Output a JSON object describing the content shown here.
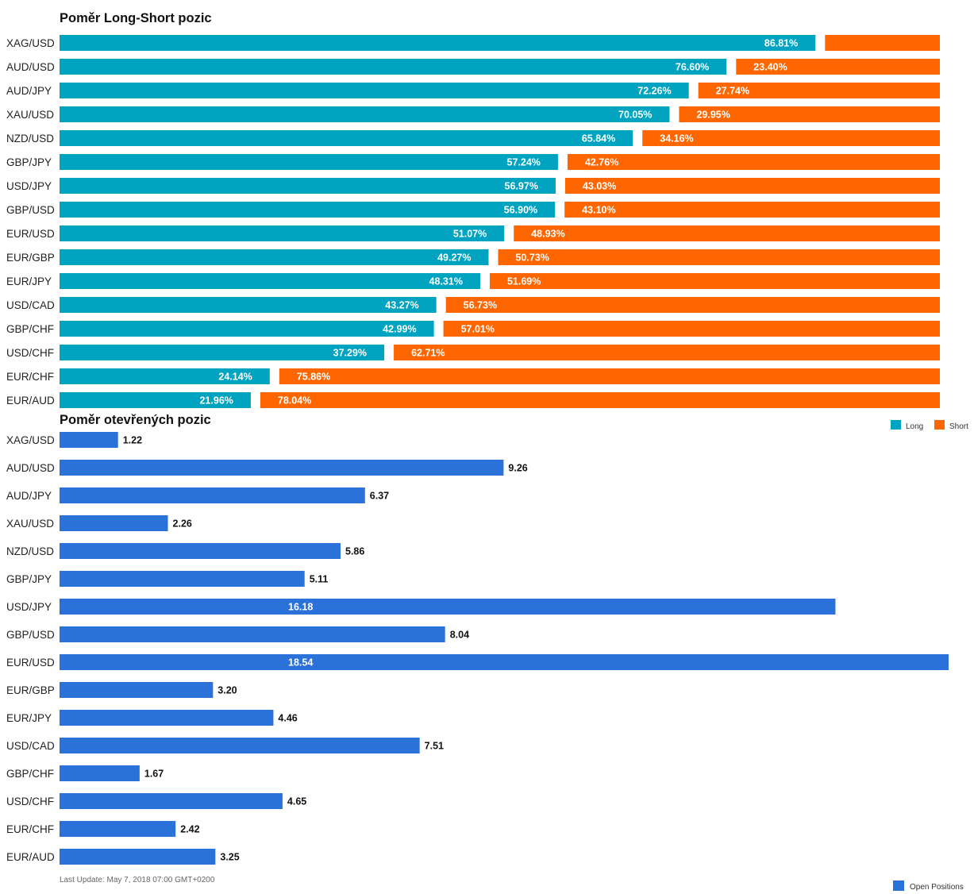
{
  "footer": {
    "last_update": "Last Update: May 7, 2018 07:00 GMT+0200"
  },
  "colors": {
    "long": "#00a3c0",
    "short": "#ff6600",
    "open": "#2a72da"
  },
  "chart_data": [
    {
      "type": "bar",
      "orientation": "horizontal",
      "stacked": true,
      "title": "Poměr Long-Short pozic",
      "categories": [
        "XAG/USD",
        "AUD/USD",
        "AUD/JPY",
        "XAU/USD",
        "NZD/USD",
        "GBP/JPY",
        "USD/JPY",
        "GBP/USD",
        "EUR/USD",
        "EUR/GBP",
        "EUR/JPY",
        "USD/CAD",
        "GBP/CHF",
        "USD/CHF",
        "EUR/CHF",
        "EUR/AUD"
      ],
      "series": [
        {
          "name": "Long",
          "color": "#00a3c0",
          "values": [
            86.81,
            76.6,
            72.26,
            70.05,
            65.84,
            57.24,
            56.97,
            56.9,
            51.07,
            49.27,
            48.31,
            43.27,
            42.99,
            37.29,
            24.14,
            21.96
          ]
        },
        {
          "name": "Short",
          "color": "#ff6600",
          "values": [
            13.19,
            23.4,
            27.74,
            29.95,
            34.16,
            42.76,
            43.03,
            43.1,
            48.93,
            50.73,
            51.69,
            56.73,
            57.01,
            62.71,
            75.86,
            78.04
          ]
        }
      ],
      "value_labels": {
        "Long": [
          "86.81%",
          "76.60%",
          "72.26%",
          "70.05%",
          "65.84%",
          "57.24%",
          "56.97%",
          "56.90%",
          "51.07%",
          "49.27%",
          "48.31%",
          "43.27%",
          "42.99%",
          "37.29%",
          "24.14%",
          "21.96%"
        ],
        "Short": [
          "",
          "23.40%",
          "27.74%",
          "29.95%",
          "34.16%",
          "42.76%",
          "43.03%",
          "43.10%",
          "48.93%",
          "50.73%",
          "51.69%",
          "56.73%",
          "57.01%",
          "62.71%",
          "75.86%",
          "78.04%"
        ]
      },
      "xlim": [
        0,
        100
      ],
      "legend": "bottom-right"
    },
    {
      "type": "bar",
      "orientation": "horizontal",
      "title": "Poměr otevřených pozic",
      "categories": [
        "XAG/USD",
        "AUD/USD",
        "AUD/JPY",
        "XAU/USD",
        "NZD/USD",
        "GBP/JPY",
        "USD/JPY",
        "GBP/USD",
        "EUR/USD",
        "EUR/GBP",
        "EUR/JPY",
        "USD/CAD",
        "GBP/CHF",
        "USD/CHF",
        "EUR/CHF",
        "EUR/AUD"
      ],
      "series": [
        {
          "name": "Open Positions",
          "color": "#2a72da",
          "values": [
            1.22,
            9.26,
            6.37,
            2.26,
            5.86,
            5.11,
            16.18,
            8.04,
            18.54,
            3.2,
            4.46,
            7.51,
            1.67,
            4.65,
            2.42,
            3.25
          ]
        }
      ],
      "value_labels": [
        "1.22",
        "9.26",
        "6.37",
        "2.26",
        "5.86",
        "5.11",
        "16.18",
        "8.04",
        "18.54",
        "3.20",
        "4.46",
        "7.51",
        "1.67",
        "4.65",
        "2.42",
        "3.25"
      ],
      "xlim": [
        0,
        18.54
      ],
      "legend": "bottom-right"
    }
  ]
}
